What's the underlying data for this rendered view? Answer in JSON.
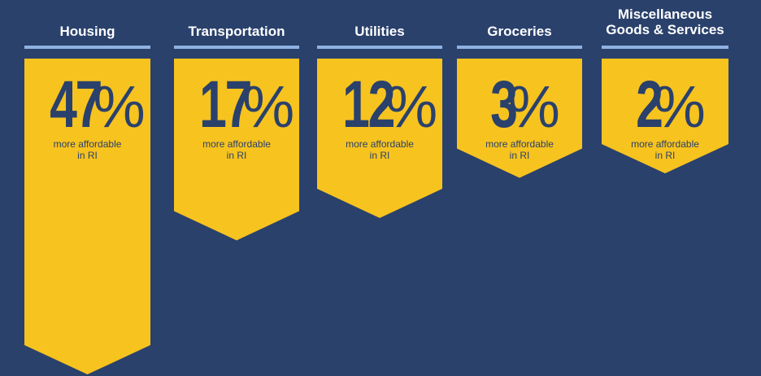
{
  "colors": {
    "background": "#2a416c",
    "banner": "#f7c31f",
    "rule": "#8fb2e3",
    "text_dark": "#2a416c",
    "title": "#ffffff"
  },
  "chart_data": {
    "type": "bar",
    "categories": [
      "Housing",
      "Transportation",
      "Utilities",
      "Groceries",
      "Miscellaneous\nGoods & Services"
    ],
    "values": [
      47,
      17,
      12,
      3,
      2
    ],
    "value_labels": [
      "47",
      "17",
      "12",
      "3",
      "2"
    ],
    "unit": "%",
    "caption": "more affordable\nin RI"
  }
}
